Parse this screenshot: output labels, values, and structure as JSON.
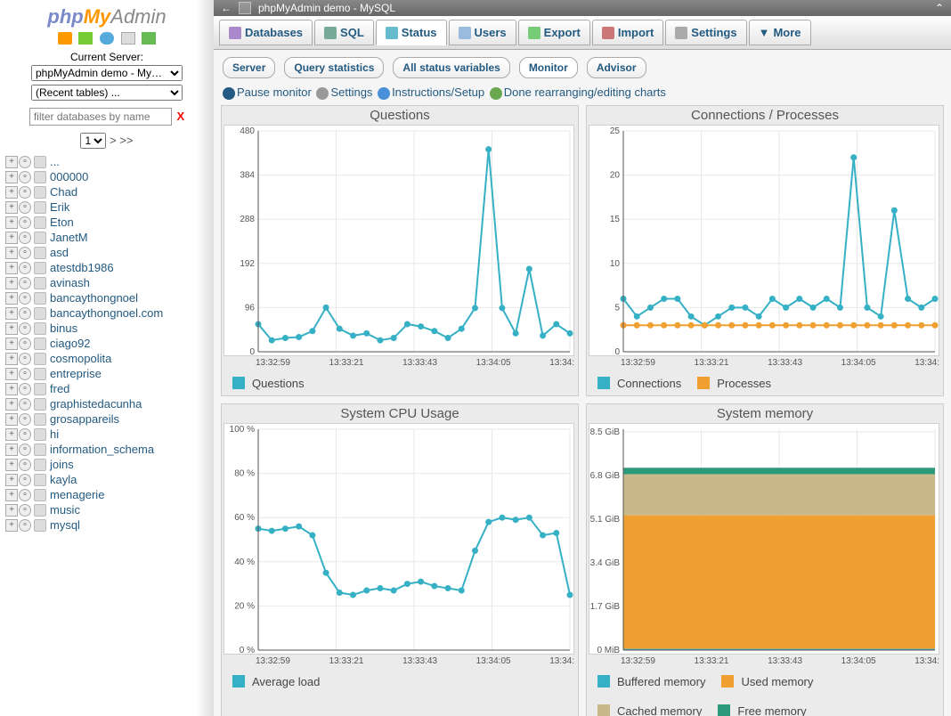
{
  "logo": {
    "php": "php",
    "my": "My",
    "admin": "Admin"
  },
  "sidebar": {
    "server_label": "Current Server:",
    "server_value": "phpMyAdmin demo - My…",
    "recent_value": "(Recent tables) ...",
    "filter_placeholder": "filter databases by name",
    "page_value": "1",
    "pager_next": "> >>",
    "databases": [
      "...",
      "000000",
      "Chad",
      "Erik",
      "Eton",
      "JanetM",
      "asd",
      "atestdb1986",
      "avinash",
      "bancaythongnoel",
      "bancaythongnoel.com",
      "binus",
      "ciago92",
      "cosmopolita",
      "entreprise",
      "fred",
      "graphistedacunha",
      "grosappareils",
      "hi",
      "information_schema",
      "joins",
      "kayla",
      "menagerie",
      "music",
      "mysql"
    ]
  },
  "titlebar": {
    "back": "←",
    "title": "phpMyAdmin demo - MySQL"
  },
  "topnav": {
    "items": [
      {
        "label": "Databases",
        "icon": "#a8c",
        "active": false
      },
      {
        "label": "SQL",
        "icon": "#7a9",
        "active": false
      },
      {
        "label": "Status",
        "icon": "#6bc",
        "active": true
      },
      {
        "label": "Users",
        "icon": "#9bd",
        "active": false
      },
      {
        "label": "Export",
        "icon": "#7c7",
        "active": false
      },
      {
        "label": "Import",
        "icon": "#c77",
        "active": false
      },
      {
        "label": "Settings",
        "icon": "#aaa",
        "active": false
      },
      {
        "label": "More",
        "icon": "#555",
        "active": false,
        "prefix": "▼"
      }
    ]
  },
  "subnav": {
    "items": [
      {
        "label": "Server",
        "active": false
      },
      {
        "label": "Query statistics",
        "active": false
      },
      {
        "label": "All status variables",
        "active": false
      },
      {
        "label": "Monitor",
        "active": true
      },
      {
        "label": "Advisor",
        "active": false
      }
    ]
  },
  "toolbar": {
    "pause": "Pause monitor",
    "settings": "Settings",
    "instructions": "Instructions/Setup",
    "done": "Done rearranging/editing charts",
    "ic_pause": "#235a81",
    "ic_gear": "#999",
    "ic_help": "#4a90d9",
    "ic_check": "#6aa84f"
  },
  "colors": {
    "teal": "#35b0c5",
    "orange": "#f0a030",
    "green_mem": "#2c9a7a",
    "tan": "#c9b88a",
    "orange_mem": "#f0a030",
    "blue_mem": "#35b0c5"
  },
  "charts": [
    {
      "title": "Questions",
      "type": "line",
      "ymin": 0,
      "ymax": 480,
      "ystep": 96,
      "ysuffix": "",
      "xlabels": [
        "13:32:59",
        "13:33:21",
        "13:33:43",
        "13:34:05",
        "13:34:"
      ],
      "series": [
        {
          "name": "Questions",
          "color_key": "teal",
          "points": [
            60,
            25,
            30,
            32,
            45,
            96,
            50,
            35,
            40,
            25,
            30,
            60,
            55,
            45,
            30,
            50,
            95,
            440,
            95,
            40,
            180,
            35,
            60,
            40
          ]
        }
      ],
      "legend": [
        {
          "label": "Questions",
          "color_key": "teal"
        }
      ]
    },
    {
      "title": "Connections / Processes",
      "type": "line",
      "ymin": 0,
      "ymax": 25,
      "ystep": 5,
      "ysuffix": "",
      "xlabels": [
        "13:32:59",
        "13:33:21",
        "13:33:43",
        "13:34:05",
        "13:34:"
      ],
      "series": [
        {
          "name": "Connections",
          "color_key": "teal",
          "points": [
            6,
            4,
            5,
            6,
            6,
            4,
            3,
            4,
            5,
            5,
            4,
            6,
            5,
            6,
            5,
            6,
            5,
            22,
            5,
            4,
            16,
            6,
            5,
            6
          ]
        },
        {
          "name": "Processes",
          "color_key": "orange",
          "points": [
            3,
            3,
            3,
            3,
            3,
            3,
            3,
            3,
            3,
            3,
            3,
            3,
            3,
            3,
            3,
            3,
            3,
            3,
            3,
            3,
            3,
            3,
            3,
            3
          ]
        }
      ],
      "legend": [
        {
          "label": "Connections",
          "color_key": "teal"
        },
        {
          "label": "Processes",
          "color_key": "orange"
        }
      ]
    },
    {
      "title": "System CPU Usage",
      "type": "line",
      "ymin": 0,
      "ymax": 100,
      "ystep": 20,
      "ysuffix": " %",
      "xlabels": [
        "13:32:59",
        "13:33:21",
        "13:33:43",
        "13:34:05",
        "13:34:"
      ],
      "series": [
        {
          "name": "Average load",
          "color_key": "teal",
          "points": [
            55,
            54,
            55,
            56,
            52,
            35,
            26,
            25,
            27,
            28,
            27,
            30,
            31,
            29,
            28,
            27,
            45,
            58,
            60,
            59,
            60,
            52,
            53,
            25
          ]
        }
      ],
      "legend": [
        {
          "label": "Average load",
          "color_key": "teal"
        }
      ]
    },
    {
      "title": "System memory",
      "type": "area",
      "ymin": 0,
      "ymax": 8.6,
      "ystep": 1.7,
      "ysuffix": " GiB",
      "yzerolabel": "0 MiB",
      "xlabels": [
        "13:32:59",
        "13:33:21",
        "13:33:43",
        "13:34:05",
        "13:34:"
      ],
      "stacks": [
        {
          "name": "Buffered memory",
          "color_key": "blue_mem",
          "height": 0.05
        },
        {
          "name": "Used memory",
          "color_key": "orange_mem",
          "height": 5.2
        },
        {
          "name": "Cached memory",
          "color_key": "tan",
          "height": 1.6
        },
        {
          "name": "Free memory",
          "color_key": "green_mem",
          "height": 0.25
        }
      ],
      "legend": [
        {
          "label": "Buffered memory",
          "color_key": "blue_mem"
        },
        {
          "label": "Used memory",
          "color_key": "orange_mem"
        },
        {
          "label": "Cached memory",
          "color_key": "tan"
        },
        {
          "label": "Free memory",
          "color_key": "green_mem"
        }
      ]
    }
  ]
}
